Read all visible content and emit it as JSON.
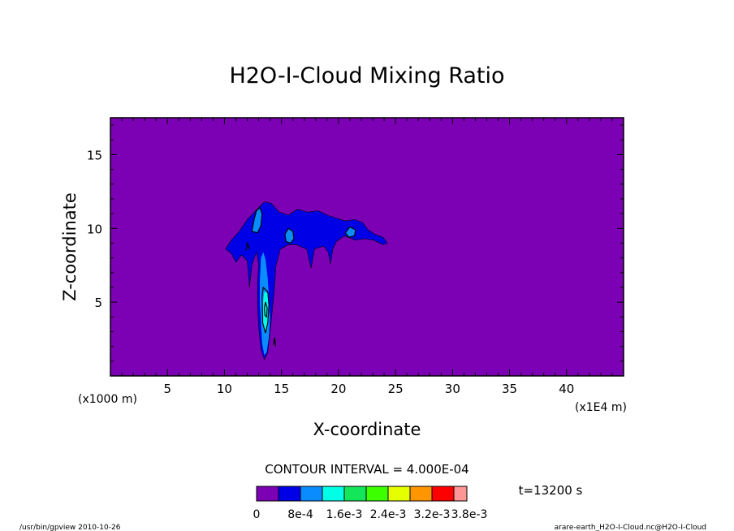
{
  "chart_data": {
    "type": "contour",
    "title": "H2O-I-Cloud Mixing Ratio",
    "xlabel": "X-coordinate",
    "ylabel": "Z-coordinate",
    "x_unit_label": "(x1E4 m)",
    "y_unit_label": "(x1000 m)",
    "xlim": [
      0,
      45
    ],
    "ylim": [
      0,
      17.5
    ],
    "x_ticks": [
      5,
      10,
      15,
      20,
      25,
      30,
      35,
      40
    ],
    "y_ticks": [
      5,
      10,
      15
    ],
    "contour_interval_text": "CONTOUR INTERVAL = 4.000E-04",
    "time_text": "t=13200 s",
    "colorbar": {
      "colors": [
        "#7c00b4",
        "#0000e6",
        "#0a8cff",
        "#00ffe6",
        "#14e65a",
        "#3cff00",
        "#e6ff00",
        "#ff9600",
        "#ff0000",
        "#ff9696"
      ],
      "labels": [
        "0",
        "8e-4",
        "1.6e-3",
        "2.4e-3",
        "3.2e-3",
        "3.8e-3"
      ]
    },
    "regions": [
      {
        "level": 1,
        "points": [
          [
            10.1,
            8.6
          ],
          [
            10.6,
            9.2
          ],
          [
            11.3,
            9.8
          ],
          [
            12.0,
            10.6
          ],
          [
            12.5,
            11.0
          ],
          [
            13.0,
            11.4
          ],
          [
            13.5,
            11.8
          ],
          [
            14.1,
            11.7
          ],
          [
            14.8,
            11.1
          ],
          [
            15.6,
            10.9
          ],
          [
            16.4,
            11.3
          ],
          [
            17.3,
            11.1
          ],
          [
            18.2,
            11.2
          ],
          [
            19.0,
            10.9
          ],
          [
            19.8,
            10.7
          ],
          [
            20.6,
            10.5
          ],
          [
            21.4,
            10.6
          ],
          [
            22.1,
            10.4
          ],
          [
            22.6,
            9.9
          ],
          [
            23.2,
            9.6
          ],
          [
            23.9,
            9.4
          ],
          [
            24.3,
            9.0
          ],
          [
            23.9,
            8.9
          ],
          [
            23.1,
            9.2
          ],
          [
            22.3,
            9.3
          ],
          [
            21.5,
            9.2
          ],
          [
            20.5,
            9.5
          ],
          [
            19.8,
            9.1
          ],
          [
            19.5,
            8.6
          ],
          [
            19.3,
            7.6
          ],
          [
            19.1,
            8.4
          ],
          [
            18.7,
            8.8
          ],
          [
            17.9,
            8.6
          ],
          [
            17.6,
            7.3
          ],
          [
            17.2,
            8.6
          ],
          [
            16.3,
            8.9
          ],
          [
            15.6,
            8.9
          ],
          [
            14.9,
            8.6
          ],
          [
            14.5,
            7.4
          ],
          [
            14.4,
            6.0
          ],
          [
            14.2,
            4.5
          ],
          [
            14.0,
            3.0
          ],
          [
            13.8,
            1.6
          ],
          [
            13.5,
            1.1
          ],
          [
            13.2,
            1.8
          ],
          [
            13.0,
            3.3
          ],
          [
            12.9,
            4.8
          ],
          [
            12.9,
            6.3
          ],
          [
            13.0,
            7.6
          ],
          [
            12.8,
            8.4
          ],
          [
            12.4,
            7.5
          ],
          [
            12.2,
            6.0
          ],
          [
            12.0,
            7.8
          ],
          [
            11.5,
            8.2
          ],
          [
            11.0,
            7.7
          ],
          [
            10.6,
            8.3
          ]
        ]
      },
      {
        "level": 2,
        "points": [
          [
            12.4,
            9.8
          ],
          [
            12.6,
            10.6
          ],
          [
            12.8,
            11.2
          ],
          [
            13.1,
            11.4
          ],
          [
            13.3,
            11.0
          ],
          [
            13.2,
            10.2
          ],
          [
            12.9,
            9.7
          ]
        ]
      },
      {
        "level": 2,
        "points": [
          [
            13.2,
            8.0
          ],
          [
            13.4,
            8.4
          ],
          [
            13.6,
            7.9
          ],
          [
            13.8,
            6.6
          ],
          [
            13.9,
            5.2
          ],
          [
            14.0,
            3.9
          ],
          [
            13.9,
            2.6
          ],
          [
            13.7,
            1.6
          ],
          [
            13.5,
            1.4
          ],
          [
            13.3,
            2.2
          ],
          [
            13.2,
            3.6
          ],
          [
            13.1,
            5.0
          ],
          [
            13.1,
            6.4
          ]
        ]
      },
      {
        "level": 2,
        "points": [
          [
            15.3,
            9.6
          ],
          [
            15.6,
            10.0
          ],
          [
            16.0,
            9.8
          ],
          [
            16.1,
            9.3
          ],
          [
            15.8,
            9.0
          ],
          [
            15.4,
            9.1
          ]
        ]
      },
      {
        "level": 2,
        "points": [
          [
            20.6,
            9.7
          ],
          [
            21.0,
            10.1
          ],
          [
            21.5,
            9.9
          ],
          [
            21.4,
            9.5
          ],
          [
            20.9,
            9.4
          ]
        ]
      },
      {
        "level": 3,
        "points": [
          [
            13.4,
            5.1
          ],
          [
            13.5,
            5.7
          ],
          [
            13.8,
            5.6
          ],
          [
            13.9,
            4.6
          ],
          [
            13.8,
            3.4
          ],
          [
            13.6,
            2.8
          ],
          [
            13.4,
            3.6
          ]
        ]
      }
    ],
    "contour_lines": [
      [
        [
          12.4,
          9.8
        ],
        [
          12.6,
          10.6
        ],
        [
          12.8,
          11.2
        ],
        [
          13.1,
          11.4
        ],
        [
          13.3,
          11.0
        ],
        [
          13.2,
          10.2
        ],
        [
          12.9,
          9.7
        ],
        [
          12.4,
          9.8
        ]
      ],
      [
        [
          15.3,
          9.6
        ],
        [
          15.6,
          10.0
        ],
        [
          16.0,
          9.8
        ],
        [
          16.1,
          9.3
        ],
        [
          15.8,
          9.0
        ],
        [
          15.4,
          9.1
        ],
        [
          15.3,
          9.6
        ]
      ],
      [
        [
          20.6,
          9.7
        ],
        [
          21.0,
          10.1
        ],
        [
          21.5,
          9.9
        ],
        [
          21.4,
          9.5
        ],
        [
          20.9,
          9.4
        ],
        [
          20.6,
          9.7
        ]
      ],
      [
        [
          13.3,
          5.4
        ],
        [
          13.4,
          6.0
        ],
        [
          13.8,
          5.7
        ],
        [
          13.9,
          4.8
        ],
        [
          13.8,
          3.6
        ],
        [
          13.6,
          2.9
        ],
        [
          13.35,
          3.6
        ],
        [
          13.3,
          5.4
        ]
      ],
      [
        [
          13.5,
          4.6
        ],
        [
          13.6,
          5.0
        ],
        [
          13.75,
          4.6
        ],
        [
          13.7,
          4.0
        ],
        [
          13.55,
          4.1
        ],
        [
          13.5,
          4.6
        ]
      ],
      [
        [
          14.3,
          2.1
        ],
        [
          14.4,
          2.6
        ],
        [
          14.5,
          2.0
        ]
      ],
      [
        [
          11.9,
          8.5
        ],
        [
          12.0,
          9.0
        ],
        [
          12.2,
          8.6
        ]
      ]
    ]
  },
  "footer": {
    "left": "/usr/bin/gpview  2010-10-26",
    "right": "arare-earth_H2O-I-Cloud.nc@H2O-I-Cloud"
  }
}
